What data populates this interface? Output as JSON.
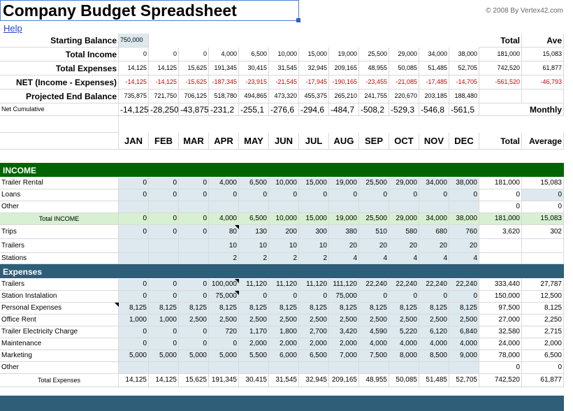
{
  "title": "Company Budget Spreadsheet",
  "copyright": "© 2008 By Vertex42.com",
  "help": "Help",
  "colors": {
    "income_band": "#006400",
    "expense_band": "#2e5e78",
    "total_income_row": "#d7f0d1",
    "shade": "#dde9ef",
    "link": "#2448c8",
    "negative": "#cc0000"
  },
  "summary": {
    "total_header": "Total",
    "ave_header": "Ave",
    "starting_balance": {
      "label": "Starting Balance",
      "value": "750,000"
    },
    "rows": [
      {
        "label": "Total Income",
        "values": [
          "0",
          "0",
          "0",
          "4,000",
          "6,500",
          "10,000",
          "15,000",
          "19,000",
          "25,500",
          "29,000",
          "34,000",
          "38,000"
        ],
        "total": "181,000",
        "ave": "15,083",
        "neg": false
      },
      {
        "label": "Total Expenses",
        "values": [
          "14,125",
          "14,125",
          "15,625",
          "191,345",
          "30,415",
          "31,545",
          "32,945",
          "209,165",
          "48,955",
          "50,085",
          "51,485",
          "52,705"
        ],
        "total": "742,520",
        "ave": "61,877",
        "neg": false
      },
      {
        "label": "NET (Income - Expenses)",
        "values": [
          "-14,125",
          "-14,125",
          "-15,625",
          "-187,345",
          "-23,915",
          "-21,545",
          "-17,945",
          "-190,165",
          "-23,455",
          "-21,085",
          "-17,485",
          "-14,705"
        ],
        "total": "-561,520",
        "ave": "-46,793",
        "neg": true
      },
      {
        "label": "Projected End Balance",
        "values": [
          "735,875",
          "721,750",
          "706,125",
          "518,780",
          "494,865",
          "473,320",
          "455,375",
          "265,210",
          "241,755",
          "220,670",
          "203,185",
          "188,480"
        ],
        "total": "",
        "ave": "",
        "neg": false
      }
    ],
    "net_cumulative": {
      "label": "Net Cumulative",
      "values": [
        "-14,125",
        "-28,250",
        "-43,875",
        "-231,2",
        "-255,1",
        "-276,6",
        "-294,6",
        "-484,7",
        "-508,2",
        "-529,3",
        "-546,8",
        "-561,5"
      ],
      "monthly": "Monthly"
    }
  },
  "months": [
    "JAN",
    "FEB",
    "MAR",
    "APR",
    "MAY",
    "JUN",
    "JUL",
    "AUG",
    "SEP",
    "OCT",
    "NOV",
    "DEC"
  ],
  "month_total": "Total",
  "month_average": "Average",
  "income": {
    "header": "INCOME",
    "rows": [
      {
        "label": "Trailer Rental",
        "values": [
          "0",
          "0",
          "0",
          "4,000",
          "6,500",
          "10,000",
          "15,000",
          "19,000",
          "25,500",
          "29,000",
          "34,000",
          "38,000"
        ],
        "total": "181,000",
        "avg": "15,083"
      },
      {
        "label": "Loans",
        "values": [
          "0",
          "0",
          "0",
          "0",
          "0",
          "0",
          "0",
          "0",
          "0",
          "0",
          "0",
          "0"
        ],
        "total": "0",
        "avg": "0"
      },
      {
        "label": "Other",
        "values": [
          "",
          "",
          "",
          "",
          "",
          "",
          "",
          "",
          "",
          "",
          "",
          ""
        ],
        "total": "0",
        "avg": "0"
      }
    ],
    "total_row": {
      "label": "Total INCOME",
      "values": [
        "0",
        "0",
        "0",
        "4,000",
        "6,500",
        "10,000",
        "15,000",
        "19,000",
        "25,500",
        "29,000",
        "34,000",
        "38,000"
      ],
      "total": "181,000",
      "avg": "15,083"
    }
  },
  "drivers": [
    {
      "label": "Trips",
      "values": [
        "0",
        "0",
        "0",
        "80",
        "130",
        "200",
        "300",
        "380",
        "510",
        "580",
        "680",
        "760"
      ],
      "total": "3,620",
      "avg": "302"
    },
    {
      "label": "Trailers",
      "values": [
        "",
        "",
        "",
        "10",
        "10",
        "10",
        "10",
        "20",
        "20",
        "20",
        "20",
        "20"
      ],
      "total": "",
      "avg": ""
    },
    {
      "label": "Stations",
      "values": [
        "",
        "",
        "",
        "2",
        "2",
        "2",
        "2",
        "4",
        "4",
        "4",
        "4",
        "4"
      ],
      "total": "",
      "avg": ""
    }
  ],
  "expenses": {
    "header": "Expenses",
    "rows": [
      {
        "label": "Trailers",
        "values": [
          "0",
          "0",
          "0",
          "100,000",
          "11,120",
          "11,120",
          "11,120",
          "111,120",
          "22,240",
          "22,240",
          "22,240",
          "22,240"
        ],
        "total": "333,440",
        "avg": "27,787"
      },
      {
        "label": "Station Instalation",
        "values": [
          "0",
          "0",
          "0",
          "75,000",
          "0",
          "0",
          "0",
          "75,000",
          "0",
          "0",
          "0",
          "0"
        ],
        "total": "150,000",
        "avg": "12,500"
      },
      {
        "label": "Personal Expenses",
        "values": [
          "8,125",
          "8,125",
          "8,125",
          "8,125",
          "8,125",
          "8,125",
          "8,125",
          "8,125",
          "8,125",
          "8,125",
          "8,125",
          "8,125"
        ],
        "total": "97,500",
        "avg": "8,125"
      },
      {
        "label": "Office Rent",
        "values": [
          "1,000",
          "1,000",
          "2,500",
          "2,500",
          "2,500",
          "2,500",
          "2,500",
          "2,500",
          "2,500",
          "2,500",
          "2,500",
          "2,500"
        ],
        "total": "27,000",
        "avg": "2,250"
      },
      {
        "label": "Trailer Electricity Charge",
        "values": [
          "0",
          "0",
          "0",
          "720",
          "1,170",
          "1,800",
          "2,700",
          "3,420",
          "4,590",
          "5,220",
          "6,120",
          "6,840"
        ],
        "total": "32,580",
        "avg": "2,715"
      },
      {
        "label": "Maintenance",
        "values": [
          "0",
          "0",
          "0",
          "0",
          "2,000",
          "2,000",
          "2,000",
          "2,000",
          "4,000",
          "4,000",
          "4,000",
          "4,000"
        ],
        "total": "24,000",
        "avg": "2,000"
      },
      {
        "label": "Marketing",
        "values": [
          "5,000",
          "5,000",
          "5,000",
          "5,000",
          "5,500",
          "6,000",
          "6,500",
          "7,000",
          "7,500",
          "8,000",
          "8,500",
          "9,000"
        ],
        "total": "78,000",
        "avg": "6,500"
      },
      {
        "label": "Other",
        "values": [
          "",
          "",
          "",
          "",
          "",
          "",
          "",
          "",
          "",
          "",
          "",
          ""
        ],
        "total": "0",
        "avg": "0"
      }
    ],
    "total_row": {
      "label": "Total Expenses",
      "values": [
        "14,125",
        "14,125",
        "15,625",
        "191,345",
        "30,415",
        "31,545",
        "32,945",
        "209,165",
        "48,955",
        "50,085",
        "51,485",
        "52,705"
      ],
      "total": "742,520",
      "avg": "61,877"
    }
  }
}
